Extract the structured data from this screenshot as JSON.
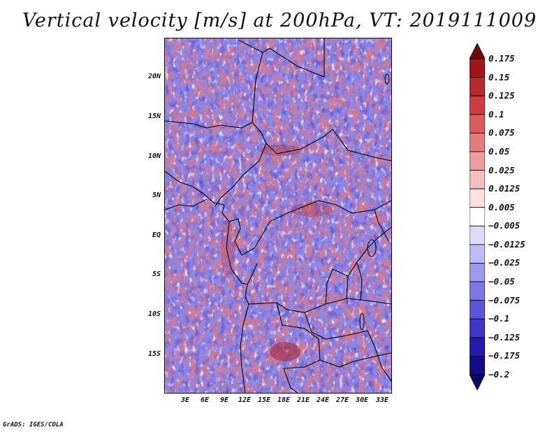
{
  "title": "Vertical velocity [m/s] at 200hPa, VT: 2019111009",
  "footer": "GrADS: IGES/COLA",
  "map": {
    "type": "filled contour map",
    "variable": "Vertical velocity",
    "units": "m/s",
    "level": "200hPa",
    "valid_time": "2019111009",
    "lat_ticks": [
      "20N",
      "15N",
      "10N",
      "5N",
      "EQ",
      "5S",
      "10S",
      "15S"
    ],
    "lon_ticks": [
      "3E",
      "6E",
      "9E",
      "12E",
      "15E",
      "18E",
      "21E",
      "24E",
      "27E",
      "30E",
      "33E"
    ]
  },
  "colorbar": {
    "levels": [
      "0.175",
      "0.15",
      "0.125",
      "0.1",
      "0.075",
      "0.05",
      "0.025",
      "0.0125",
      "0.005",
      "−0.005",
      "−0.0125",
      "−0.025",
      "−0.05",
      "−0.075",
      "−0.1",
      "−0.125",
      "−0.175",
      "−0.2"
    ],
    "colors": [
      "#6e0a0a",
      "#a11616",
      "#b82a2a",
      "#cc3d3d",
      "#db5c5c",
      "#e47c7c",
      "#ee9d9d",
      "#f5bebe",
      "#fbdede",
      "#ffffff",
      "#dedbfa",
      "#bebaf5",
      "#9e98ee",
      "#7d77e4",
      "#5d55d8",
      "#3e36c6",
      "#2419ac",
      "#140c86",
      "#0a0566"
    ]
  }
}
